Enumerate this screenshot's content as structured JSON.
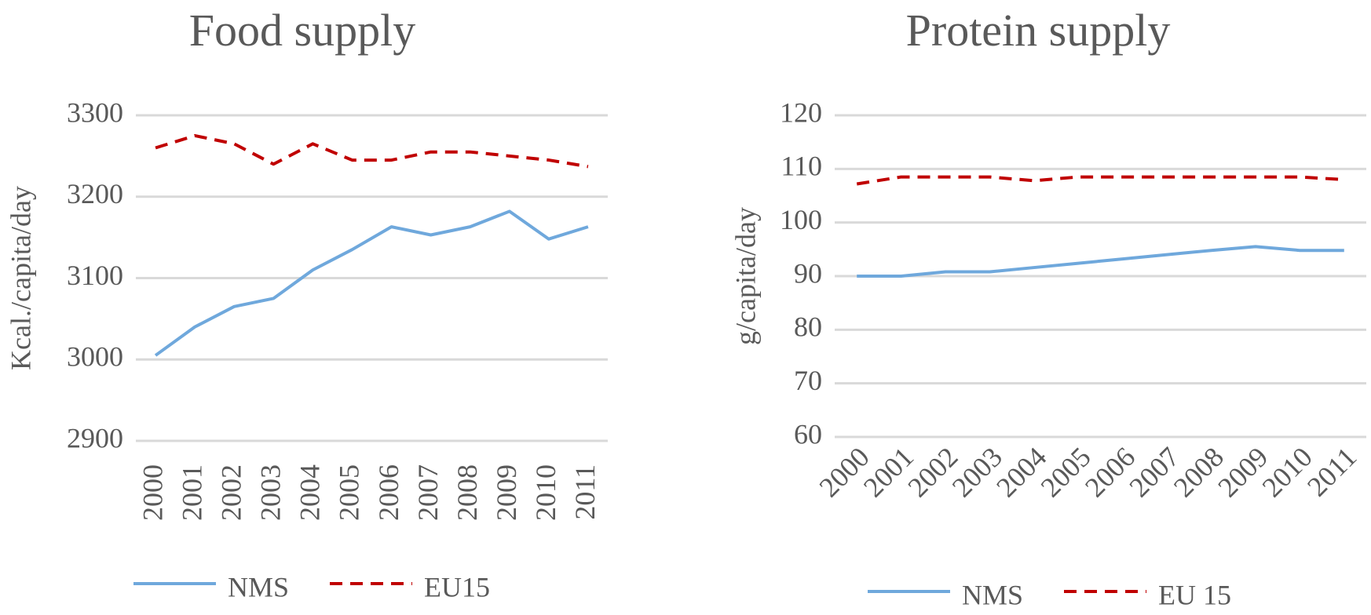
{
  "chart_data": [
    {
      "type": "line",
      "title": "Food supply",
      "y_label": "Kcal./capita/day",
      "categories": [
        "2000",
        "2001",
        "2002",
        "2003",
        "2004",
        "2005",
        "2006",
        "2007",
        "2008",
        "2009",
        "2010",
        "2011"
      ],
      "ylim": [
        2900,
        3300
      ],
      "yticks": [
        2900,
        3000,
        3100,
        3200,
        3300
      ],
      "grid": true,
      "legend": "bottom",
      "series": [
        {
          "name": "NMS",
          "color": "#6fa8dc",
          "line_style": "solid",
          "values": [
            3005,
            3040,
            3065,
            3075,
            3110,
            3135,
            3163,
            3153,
            3163,
            3182,
            3148,
            3163
          ]
        },
        {
          "name": "EU15",
          "color": "#c00000",
          "line_style": "dashed",
          "values": [
            3260,
            3275,
            3265,
            3240,
            3265,
            3245,
            3245,
            3255,
            3255,
            3250,
            3245,
            3237
          ]
        }
      ]
    },
    {
      "type": "line",
      "title": "Protein supply",
      "y_label": "g/capita/day",
      "categories": [
        "2000",
        "2001",
        "2002",
        "2003",
        "2004",
        "2005",
        "2006",
        "2007",
        "2008",
        "2009",
        "2010",
        "2011"
      ],
      "ylim": [
        60,
        120
      ],
      "yticks": [
        60,
        70,
        80,
        90,
        100,
        110,
        120
      ],
      "grid": true,
      "legend": "bottom",
      "series": [
        {
          "name": "NMS",
          "color": "#6fa8dc",
          "line_style": "solid",
          "values": [
            90,
            90,
            90.8,
            90.8,
            91.6,
            92.4,
            93.2,
            94,
            94.8,
            95.5,
            94.8,
            94.8
          ]
        },
        {
          "name": "EU 15",
          "color": "#c00000",
          "line_style": "dashed",
          "values": [
            107.2,
            108.5,
            108.5,
            108.5,
            107.8,
            108.5,
            108.5,
            108.5,
            108.5,
            108.5,
            108.5,
            108
          ]
        }
      ]
    }
  ]
}
